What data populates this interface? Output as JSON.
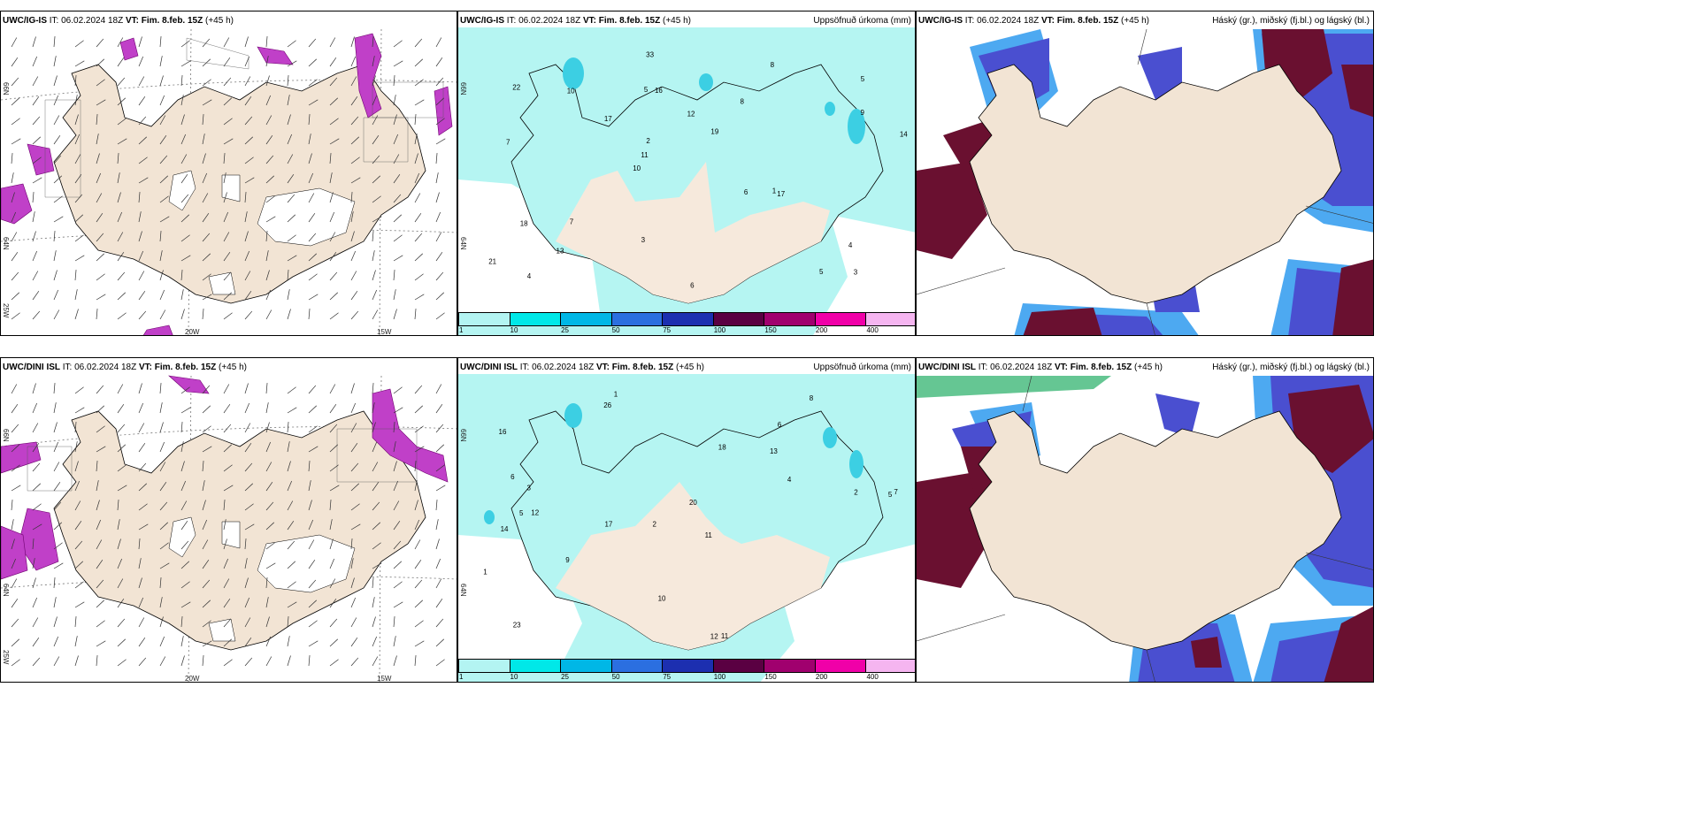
{
  "panels": [
    {
      "id": "p1",
      "model": "UWC/IG-IS",
      "it_label": "IT:",
      "it": "06.02.2024 18Z",
      "vt_label": "VT:",
      "vt": "Fim. 8.feb. 15Z",
      "lead": "(+45 h)",
      "right": ""
    },
    {
      "id": "p2",
      "model": "UWC/IG-IS",
      "it_label": "IT:",
      "it": "06.02.2024 18Z",
      "vt_label": "VT:",
      "vt": "Fim. 8.feb. 15Z",
      "lead": "(+45 h)",
      "right": "Uppsöfnuð úrkoma (mm)"
    },
    {
      "id": "p3",
      "model": "UWC/IG-IS",
      "it_label": "IT:",
      "it": "06.02.2024 18Z",
      "vt_label": "VT:",
      "vt": "Fim. 8.feb. 15Z",
      "lead": "(+45 h)",
      "right": "Háský (gr.), miðský (fj.bl.) og lágský (bl.)"
    },
    {
      "id": "p4",
      "model": "UWC/DINI ISL",
      "it_label": "IT:",
      "it": "06.02.2024 18Z",
      "vt_label": "VT:",
      "vt": "Fim. 8.feb. 15Z",
      "lead": "(+45 h)",
      "right": ""
    },
    {
      "id": "p5",
      "model": "UWC/DINI ISL",
      "it_label": "IT:",
      "it": "06.02.2024 18Z",
      "vt_label": "VT:",
      "vt": "Fim. 8.feb. 15Z",
      "lead": "(+45 h)",
      "right": "Uppsöfnuð úrkoma (mm)"
    },
    {
      "id": "p6",
      "model": "UWC/DINI ISL",
      "it_label": "IT:",
      "it": "06.02.2024 18Z",
      "vt_label": "VT:",
      "vt": "Fim. 8.feb. 15Z",
      "lead": "(+45 h)",
      "right": "Háský (gr.), miðský (fj.bl.) og lágský (bl.)"
    }
  ],
  "axis_labels": {
    "lat_north": "66N",
    "lat_south": "64N",
    "lon_west": "20W",
    "lon_east": "15W",
    "lon_far": "25W"
  },
  "colorbar": {
    "ticks": [
      "1",
      "10",
      "25",
      "50",
      "75",
      "100",
      "150",
      "200",
      "400"
    ],
    "colors": [
      "#b3f4f2",
      "#00e8e8",
      "#00b7e6",
      "#2b6fe0",
      "#1c2fb0",
      "#5a0042",
      "#a0006e",
      "#f000a8",
      "#f5b5f0"
    ]
  },
  "colors": {
    "land": "#f2e4d4",
    "precip_light": "#b5f5f2",
    "precip_med": "#3ccfe3",
    "cloud_high": "#6a1030",
    "cloud_mid": "#4a4fd0",
    "cloud_low": "#3aa0f0",
    "wind_alert": "#c040c8"
  },
  "precip_values_top": [
    "3",
    "7",
    "5",
    "10",
    "8",
    "4",
    "5",
    "12",
    "18",
    "17",
    "21",
    "13",
    "16",
    "19",
    "17",
    "22",
    "33",
    "14",
    "6",
    "9",
    "11",
    "3",
    "2",
    "10",
    "8",
    "7",
    "5",
    "4",
    "1",
    "6"
  ],
  "precip_values_bottom": [
    "1",
    "6",
    "5",
    "2",
    "11",
    "12",
    "16",
    "13",
    "14",
    "18",
    "20",
    "23",
    "26",
    "17",
    "12",
    "11",
    "10",
    "8",
    "4",
    "9",
    "3",
    "5",
    "7",
    "2",
    "1",
    "6"
  ]
}
